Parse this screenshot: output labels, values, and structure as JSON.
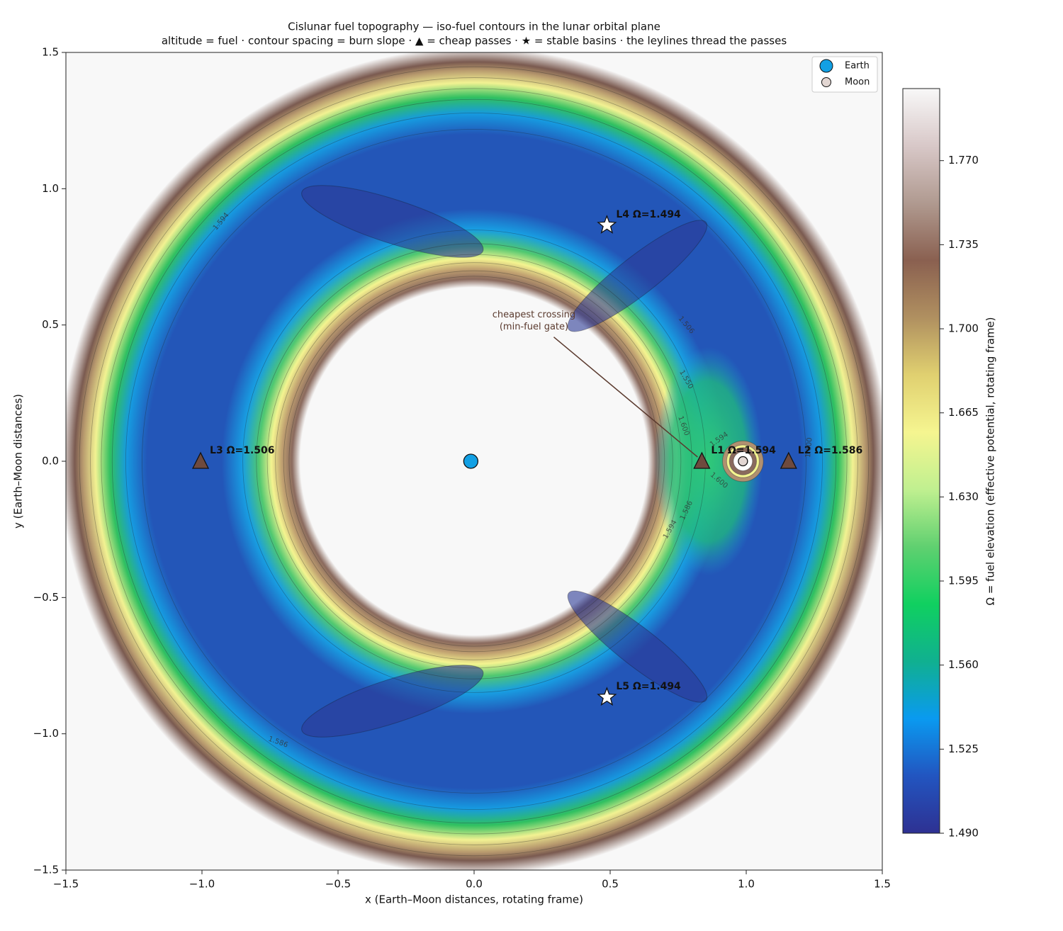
{
  "chart_data": {
    "type": "contour",
    "title": "Cislunar fuel topography — iso-fuel contours in the lunar orbital plane",
    "subtitle": "altitude = fuel · contour spacing = burn slope · ▲ = cheap passes · ★ = stable basins · the leylines thread the passes",
    "x_label": "x  (Earth–Moon distances, rotating frame)",
    "y_label": "y  (Earth–Moon distances)",
    "xlim": [
      -1.5,
      1.5
    ],
    "ylim": [
      -1.5,
      1.5
    ],
    "xticks": [
      {
        "value": -1.5,
        "label": "−1.5"
      },
      {
        "value": -1,
        "label": "−1.0"
      },
      {
        "value": -0.5,
        "label": "−0.5"
      },
      {
        "value": 0,
        "label": "0.0"
      },
      0.5,
      {
        "value": 1,
        "label": "1.0"
      },
      1.5
    ],
    "yticks": [
      {
        "value": -1.5,
        "label": "−1.5"
      },
      {
        "value": -1,
        "label": "−1.0"
      },
      {
        "value": -0.5,
        "label": "−0.5"
      },
      {
        "value": 0,
        "label": "0.0"
      },
      0.5,
      {
        "value": 1,
        "label": "1.0"
      },
      1.5
    ],
    "bodies": [
      {
        "name": "Earth",
        "x": -0.0121,
        "y": 0,
        "color": "#12a0e4"
      },
      {
        "name": "Moon",
        "x": 0.9879,
        "y": 0,
        "color": "#e2d6d2"
      }
    ],
    "legend": "upper right",
    "points": [
      {
        "label": "L1  Ω=1.594",
        "x": 0.8369,
        "y": 0,
        "marker": "triangle",
        "color": "#6e4a3e"
      },
      {
        "label": "L2  Ω=1.586",
        "x": 1.1557,
        "y": 0,
        "marker": "triangle",
        "color": "#6e4a3e"
      },
      {
        "label": "L3  Ω=1.506",
        "x": -1.0051,
        "y": 0,
        "marker": "triangle",
        "color": "#6e4a3e"
      },
      {
        "label": "L4  Ω=1.494",
        "x": 0.4879,
        "y": 0.866,
        "marker": "star",
        "color": "#ffffff"
      },
      {
        "label": "L5  Ω=1.494",
        "x": 0.4879,
        "y": -0.866,
        "marker": "star",
        "color": "#ffffff"
      }
    ],
    "annotation": {
      "lines": [
        "cheapest crossing",
        "(min-fuel gate)"
      ],
      "color": "#5a3a2e"
    },
    "contour_labels": [
      {
        "value": 1.594,
        "label": "1.594"
      },
      {
        "value": 1.506,
        "label": "1.506"
      },
      {
        "value": 1.55,
        "label": "1.550"
      },
      {
        "value": 1.6,
        "label": "1.600"
      },
      {
        "value": 1.594,
        "label": "1.594"
      },
      {
        "value": 1.6,
        "label": "1.600"
      },
      {
        "value": 1.6,
        "label": "1.600"
      },
      {
        "value": 1.586,
        "label": "1.586"
      },
      {
        "value": 1.594,
        "label": "1.594"
      },
      {
        "value": 1.586,
        "label": "1.586"
      }
    ],
    "colorbar": {
      "label": "Ω  =  fuel elevation (effective potential, rotating frame)",
      "lim": [
        1.49,
        1.8
      ],
      "ticks": [
        {
          "value": 1.49,
          "label": "1.490"
        },
        1.525,
        {
          "value": 1.56,
          "label": "1.560"
        },
        1.595,
        {
          "value": 1.63,
          "label": "1.630"
        },
        1.665,
        {
          "value": 1.7,
          "label": "1.700"
        },
        1.735,
        {
          "value": 1.77,
          "label": "1.770"
        }
      ],
      "colormap": [
        "#2e3192",
        "#2255c0",
        "#0a9af0",
        "#10b090",
        "#10d060",
        "#60d070",
        "#c0f090",
        "#f5f590",
        "#e0d070",
        "#b09060",
        "#8a6050",
        "#b09a90",
        "#d8c8c8",
        "#f8f8f8"
      ]
    }
  }
}
